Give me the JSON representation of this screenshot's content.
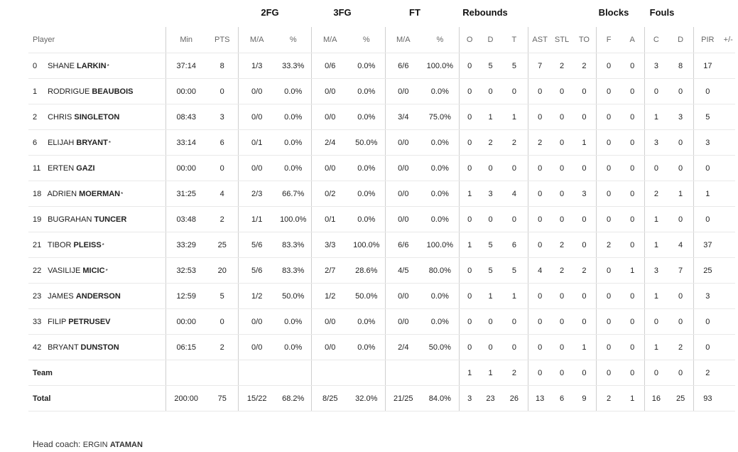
{
  "groups": {
    "two": "2FG",
    "three": "3FG",
    "ft": "FT",
    "reb": "Rebounds",
    "blk": "Blocks",
    "fouls": "Fouls"
  },
  "columns": [
    "Player",
    "Min",
    "PTS",
    "M/A",
    "%",
    "M/A",
    "%",
    "M/A",
    "%",
    "O",
    "D",
    "T",
    "AST",
    "STL",
    "TO",
    "F",
    "A",
    "C",
    "D",
    "PIR",
    "+/-"
  ],
  "players": [
    {
      "num": "0",
      "first": "SHANE",
      "last": "LARKIN",
      "starter": true,
      "stats": [
        "37:14",
        "8",
        "1/3",
        "33.3%",
        "0/6",
        "0.0%",
        "6/6",
        "100.0%",
        "0",
        "5",
        "5",
        "7",
        "2",
        "2",
        "0",
        "0",
        "3",
        "8",
        "17",
        ""
      ]
    },
    {
      "num": "1",
      "first": "RODRIGUE",
      "last": "BEAUBOIS",
      "starter": false,
      "stats": [
        "00:00",
        "0",
        "0/0",
        "0.0%",
        "0/0",
        "0.0%",
        "0/0",
        "0.0%",
        "0",
        "0",
        "0",
        "0",
        "0",
        "0",
        "0",
        "0",
        "0",
        "0",
        "0",
        ""
      ]
    },
    {
      "num": "2",
      "first": "CHRIS",
      "last": "SINGLETON",
      "starter": false,
      "stats": [
        "08:43",
        "3",
        "0/0",
        "0.0%",
        "0/0",
        "0.0%",
        "3/4",
        "75.0%",
        "0",
        "1",
        "1",
        "0",
        "0",
        "0",
        "0",
        "0",
        "1",
        "3",
        "5",
        ""
      ]
    },
    {
      "num": "6",
      "first": "ELIJAH",
      "last": "BRYANT",
      "starter": true,
      "stats": [
        "33:14",
        "6",
        "0/1",
        "0.0%",
        "2/4",
        "50.0%",
        "0/0",
        "0.0%",
        "0",
        "2",
        "2",
        "2",
        "0",
        "1",
        "0",
        "0",
        "3",
        "0",
        "3",
        ""
      ]
    },
    {
      "num": "11",
      "first": "ERTEN",
      "last": "GAZI",
      "starter": false,
      "stats": [
        "00:00",
        "0",
        "0/0",
        "0.0%",
        "0/0",
        "0.0%",
        "0/0",
        "0.0%",
        "0",
        "0",
        "0",
        "0",
        "0",
        "0",
        "0",
        "0",
        "0",
        "0",
        "0",
        ""
      ]
    },
    {
      "num": "18",
      "first": "ADRIEN",
      "last": "MOERMAN",
      "starter": true,
      "stats": [
        "31:25",
        "4",
        "2/3",
        "66.7%",
        "0/2",
        "0.0%",
        "0/0",
        "0.0%",
        "1",
        "3",
        "4",
        "0",
        "0",
        "3",
        "0",
        "0",
        "2",
        "1",
        "1",
        ""
      ]
    },
    {
      "num": "19",
      "first": "BUGRAHAN",
      "last": "TUNCER",
      "starter": false,
      "stats": [
        "03:48",
        "2",
        "1/1",
        "100.0%",
        "0/1",
        "0.0%",
        "0/0",
        "0.0%",
        "0",
        "0",
        "0",
        "0",
        "0",
        "0",
        "0",
        "0",
        "1",
        "0",
        "0",
        ""
      ]
    },
    {
      "num": "21",
      "first": "TIBOR",
      "last": "PLEISS",
      "starter": true,
      "stats": [
        "33:29",
        "25",
        "5/6",
        "83.3%",
        "3/3",
        "100.0%",
        "6/6",
        "100.0%",
        "1",
        "5",
        "6",
        "0",
        "2",
        "0",
        "2",
        "0",
        "1",
        "4",
        "37",
        ""
      ]
    },
    {
      "num": "22",
      "first": "VASILIJE",
      "last": "MICIC",
      "starter": true,
      "stats": [
        "32:53",
        "20",
        "5/6",
        "83.3%",
        "2/7",
        "28.6%",
        "4/5",
        "80.0%",
        "0",
        "5",
        "5",
        "4",
        "2",
        "2",
        "0",
        "1",
        "3",
        "7",
        "25",
        ""
      ]
    },
    {
      "num": "23",
      "first": "JAMES",
      "last": "ANDERSON",
      "starter": false,
      "stats": [
        "12:59",
        "5",
        "1/2",
        "50.0%",
        "1/2",
        "50.0%",
        "0/0",
        "0.0%",
        "0",
        "1",
        "1",
        "0",
        "0",
        "0",
        "0",
        "0",
        "1",
        "0",
        "3",
        ""
      ]
    },
    {
      "num": "33",
      "first": "FILIP",
      "last": "PETRUSEV",
      "starter": false,
      "stats": [
        "00:00",
        "0",
        "0/0",
        "0.0%",
        "0/0",
        "0.0%",
        "0/0",
        "0.0%",
        "0",
        "0",
        "0",
        "0",
        "0",
        "0",
        "0",
        "0",
        "0",
        "0",
        "0",
        ""
      ]
    },
    {
      "num": "42",
      "first": "BRYANT",
      "last": "DUNSTON",
      "starter": false,
      "stats": [
        "06:15",
        "2",
        "0/0",
        "0.0%",
        "0/0",
        "0.0%",
        "2/4",
        "50.0%",
        "0",
        "0",
        "0",
        "0",
        "0",
        "1",
        "0",
        "0",
        "1",
        "2",
        "0",
        ""
      ]
    }
  ],
  "team": {
    "label": "Team",
    "stats": [
      "",
      "",
      "",
      "",
      "",
      "",
      "",
      "",
      "1",
      "1",
      "2",
      "0",
      "0",
      "0",
      "0",
      "0",
      "0",
      "0",
      "2",
      ""
    ]
  },
  "total": {
    "label": "Total",
    "stats": [
      "200:00",
      "75",
      "15/22",
      "68.2%",
      "8/25",
      "32.0%",
      "21/25",
      "84.0%",
      "3",
      "23",
      "26",
      "13",
      "6",
      "9",
      "2",
      "1",
      "16",
      "25",
      "93",
      ""
    ]
  },
  "coach": {
    "prefix": "Head coach:",
    "first": "ERGIN",
    "last": "ATAMAN"
  }
}
